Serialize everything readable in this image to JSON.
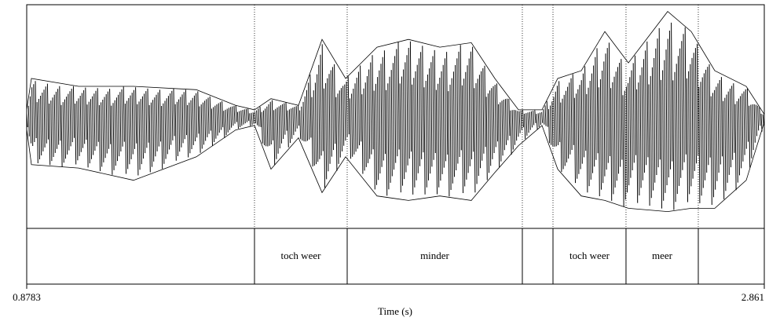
{
  "chart_data": {
    "type": "waveform",
    "x_label": "Time (s)",
    "xlim": [
      0.8783,
      2.861
    ],
    "xticks": [
      0.8783,
      2.861
    ],
    "ylim": [
      -1,
      1
    ],
    "color": "#000000",
    "x": [
      0.8783,
      0.891,
      1.0177,
      1.1655,
      1.3344,
      1.44,
      1.4906,
      1.535,
      1.6089,
      1.6722,
      1.7356,
      1.82,
      1.9045,
      1.9889,
      2.0734,
      2.1368,
      2.2001,
      2.2634,
      2.3057,
      2.369,
      2.4324,
      2.4957,
      2.6013,
      2.6646,
      2.728,
      2.8124,
      2.861
    ],
    "series": [
      {
        "name": "upper",
        "values": [
          0.06,
          0.34,
          0.27,
          0.27,
          0.24,
          0.1,
          0.06,
          0.16,
          0.1,
          0.69,
          0.34,
          0.62,
          0.69,
          0.62,
          0.66,
          0.34,
          0.06,
          0.06,
          0.34,
          0.41,
          0.76,
          0.48,
          0.94,
          0.76,
          0.41,
          0.27,
          0.02
        ]
      },
      {
        "name": "lower",
        "values": [
          -0.11,
          -0.43,
          -0.46,
          -0.57,
          -0.36,
          -0.12,
          -0.08,
          -0.47,
          -0.19,
          -0.68,
          -0.36,
          -0.71,
          -0.75,
          -0.71,
          -0.75,
          -0.5,
          -0.26,
          -0.08,
          -0.47,
          -0.71,
          -0.75,
          -0.82,
          -0.85,
          -0.82,
          -0.82,
          -0.57,
          -0.05
        ]
      }
    ],
    "tier": {
      "boundaries": [
        1.4906,
        1.7398,
        2.2106,
        2.293,
        2.4893,
        2.6836
      ],
      "labels": [
        null,
        "toch weer",
        "minder",
        null,
        "toch weer",
        "meer",
        null
      ]
    }
  }
}
